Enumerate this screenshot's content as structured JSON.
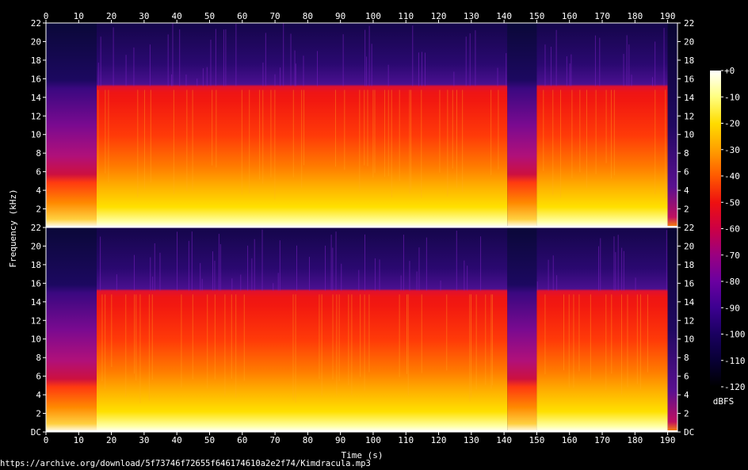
{
  "chart_data": {
    "type": "heatmap",
    "title": "",
    "xlabel": "Time (s)",
    "ylabel": "Frequency (kHz)",
    "x_range": [
      0,
      193
    ],
    "x_ticks": [
      0,
      10,
      20,
      30,
      40,
      50,
      60,
      70,
      80,
      90,
      100,
      110,
      120,
      130,
      140,
      150,
      160,
      170,
      180,
      190
    ],
    "y_range_khz": [
      0,
      22
    ],
    "y_tick_labels": [
      "DC",
      "2",
      "4",
      "6",
      "8",
      "10",
      "12",
      "14",
      "16",
      "18",
      "20",
      "22"
    ],
    "y_tick_values": [
      0,
      2,
      4,
      6,
      8,
      10,
      12,
      14,
      16,
      18,
      20,
      22
    ],
    "channels": [
      {
        "label": "upper channel"
      },
      {
        "label": "lower channel"
      }
    ],
    "colorbar": {
      "label": "dBFS",
      "ticks": [
        "+0",
        "-10",
        "-20",
        "-30",
        "-40",
        "-50",
        "-60",
        "-70",
        "-80",
        "-90",
        "-100",
        "-110",
        "-120"
      ],
      "tick_values": [
        0,
        -10,
        -20,
        -30,
        -40,
        -50,
        -60,
        -70,
        -80,
        -90,
        -100,
        -110,
        -120
      ],
      "range": [
        -120,
        0
      ],
      "colors": [
        "#ffffff",
        "#ffff80",
        "#ffdc00",
        "#ffa000",
        "#ff5a00",
        "#ee1010",
        "#cc0044",
        "#9a0080",
        "#6a00a0",
        "#3c0090",
        "#1a0060",
        "#080035",
        "#000000"
      ]
    },
    "segments": [
      {
        "start_s": 0,
        "end_s": 15.5,
        "cutoff_khz": 5.5,
        "note": "quiet intro"
      },
      {
        "start_s": 15.5,
        "end_s": 141,
        "cutoff_khz": 15.2,
        "note": "full band"
      },
      {
        "start_s": 141,
        "end_s": 150,
        "cutoff_khz": 5.0,
        "note": "quiet break"
      },
      {
        "start_s": 150,
        "end_s": 190,
        "cutoff_khz": 15.2,
        "note": "full band"
      },
      {
        "start_s": 190,
        "end_s": 193,
        "cutoff_khz": 1.0,
        "note": "fade out"
      }
    ]
  },
  "source_url": "https://archive.org/download/5f73746f72655f646174610a2e2f74/Kimdracula.mp3",
  "colors": {
    "background": "#000000",
    "text": "#ffffff",
    "axis": "#ffffff"
  }
}
